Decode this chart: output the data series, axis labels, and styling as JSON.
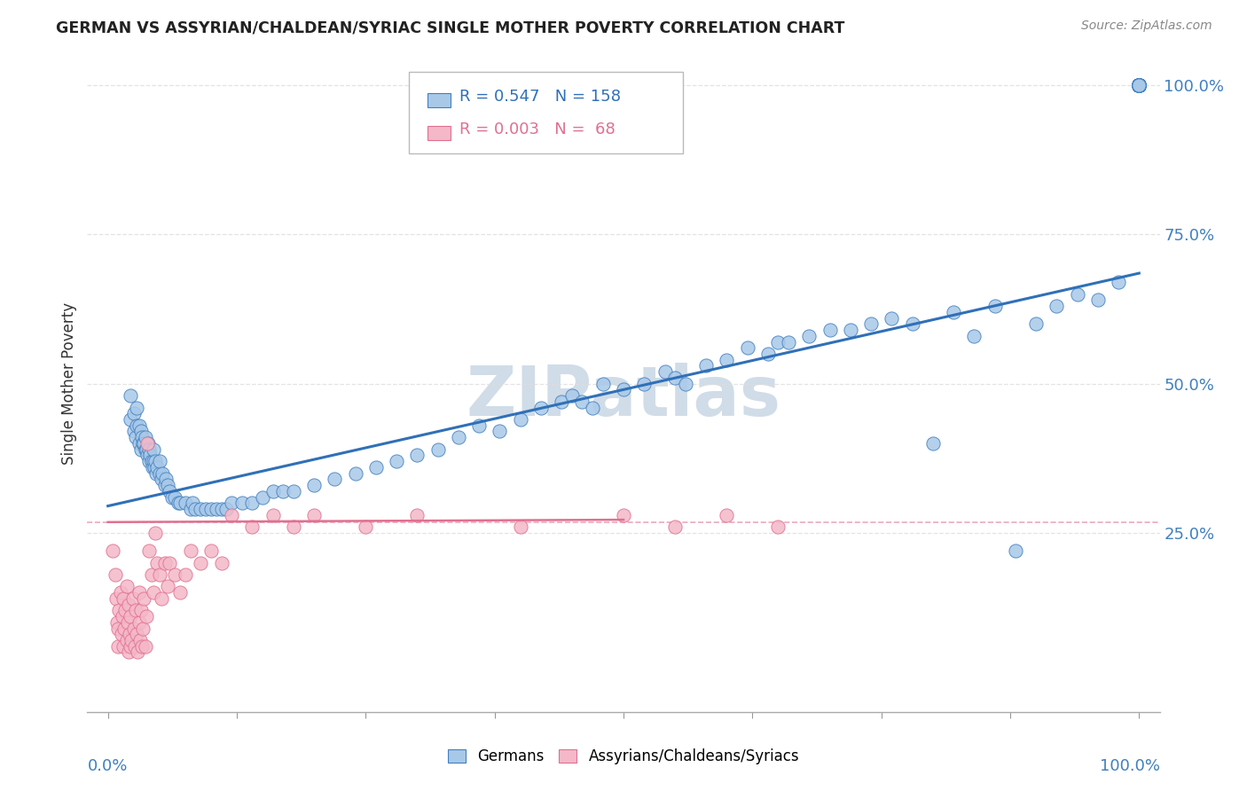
{
  "title": "GERMAN VS ASSYRIAN/CHALDEAN/SYRIAC SINGLE MOTHER POVERTY CORRELATION CHART",
  "source": "Source: ZipAtlas.com",
  "ylabel": "Single Mother Poverty",
  "legend_label1": "Germans",
  "legend_label2": "Assyrians/Chaldeans/Syriacs",
  "r1": "0.547",
  "n1": "158",
  "r2": "0.003",
  "n2": " 68",
  "color_blue": "#a8c8e8",
  "color_pink": "#f4b8c8",
  "color_blue_dark": "#4080c0",
  "color_pink_dark": "#e07090",
  "color_blue_line": "#3070b8",
  "color_pink_line": "#e06080",
  "watermark_color": "#d0dce8",
  "xlim": [
    -0.02,
    1.02
  ],
  "ylim": [
    -0.05,
    1.05
  ],
  "ytick_positions": [
    0.25,
    0.5,
    0.75,
    1.0
  ],
  "ytick_labels": [
    "25.0%",
    "50.0%",
    "75.0%",
    "100.0%"
  ],
  "xtick_positions": [
    0.0,
    0.125,
    0.25,
    0.375,
    0.5,
    0.625,
    0.75,
    0.875,
    1.0
  ],
  "grid_color": "#dddddd",
  "blue_line_x": [
    0.0,
    1.0
  ],
  "blue_line_y": [
    0.295,
    0.685
  ],
  "pink_line_x": [
    0.0,
    0.5
  ],
  "pink_line_y": [
    0.268,
    0.272
  ],
  "hline_y": 0.268,
  "blue_x": [
    0.022,
    0.022,
    0.025,
    0.025,
    0.027,
    0.028,
    0.028,
    0.03,
    0.03,
    0.032,
    0.032,
    0.033,
    0.034,
    0.035,
    0.036,
    0.036,
    0.037,
    0.038,
    0.039,
    0.04,
    0.04,
    0.041,
    0.042,
    0.043,
    0.044,
    0.044,
    0.045,
    0.046,
    0.047,
    0.048,
    0.05,
    0.05,
    0.052,
    0.053,
    0.055,
    0.056,
    0.058,
    0.06,
    0.062,
    0.065,
    0.068,
    0.07,
    0.075,
    0.08,
    0.082,
    0.085,
    0.09,
    0.095,
    0.1,
    0.105,
    0.11,
    0.115,
    0.12,
    0.13,
    0.14,
    0.15,
    0.16,
    0.17,
    0.18,
    0.2,
    0.22,
    0.24,
    0.26,
    0.28,
    0.3,
    0.32,
    0.34,
    0.36,
    0.38,
    0.4,
    0.42,
    0.44,
    0.45,
    0.46,
    0.47,
    0.48,
    0.5,
    0.52,
    0.54,
    0.55,
    0.56,
    0.58,
    0.6,
    0.62,
    0.64,
    0.65,
    0.66,
    0.68,
    0.7,
    0.72,
    0.74,
    0.76,
    0.78,
    0.8,
    0.82,
    0.84,
    0.86,
    0.88,
    0.9,
    0.92,
    0.94,
    0.96,
    0.98,
    1.0,
    1.0,
    1.0,
    1.0,
    1.0,
    1.0,
    1.0,
    1.0,
    1.0,
    1.0,
    1.0,
    1.0,
    1.0,
    1.0,
    1.0,
    1.0,
    1.0,
    1.0,
    1.0,
    1.0,
    1.0,
    1.0,
    1.0,
    1.0,
    1.0,
    1.0,
    1.0,
    1.0,
    1.0,
    1.0,
    1.0,
    1.0,
    1.0,
    1.0,
    1.0,
    1.0,
    1.0,
    1.0,
    1.0,
    1.0,
    1.0,
    1.0,
    1.0,
    1.0,
    1.0,
    1.0,
    1.0,
    1.0,
    1.0,
    1.0,
    1.0,
    1.0,
    1.0,
    1.0,
    1.0
  ],
  "blue_y": [
    0.44,
    0.48,
    0.42,
    0.45,
    0.41,
    0.43,
    0.46,
    0.4,
    0.43,
    0.39,
    0.42,
    0.41,
    0.4,
    0.4,
    0.39,
    0.41,
    0.39,
    0.38,
    0.4,
    0.37,
    0.39,
    0.38,
    0.37,
    0.36,
    0.37,
    0.39,
    0.36,
    0.37,
    0.35,
    0.36,
    0.35,
    0.37,
    0.34,
    0.35,
    0.33,
    0.34,
    0.33,
    0.32,
    0.31,
    0.31,
    0.3,
    0.3,
    0.3,
    0.29,
    0.3,
    0.29,
    0.29,
    0.29,
    0.29,
    0.29,
    0.29,
    0.29,
    0.3,
    0.3,
    0.3,
    0.31,
    0.32,
    0.32,
    0.32,
    0.33,
    0.34,
    0.35,
    0.36,
    0.37,
    0.38,
    0.39,
    0.41,
    0.43,
    0.42,
    0.44,
    0.46,
    0.47,
    0.48,
    0.47,
    0.46,
    0.5,
    0.49,
    0.5,
    0.52,
    0.51,
    0.5,
    0.53,
    0.54,
    0.56,
    0.55,
    0.57,
    0.57,
    0.58,
    0.59,
    0.59,
    0.6,
    0.61,
    0.6,
    0.4,
    0.62,
    0.58,
    0.63,
    0.22,
    0.6,
    0.63,
    0.65,
    0.64,
    0.67,
    1.0,
    1.0,
    1.0,
    1.0,
    1.0,
    1.0,
    1.0,
    1.0,
    1.0,
    1.0,
    1.0,
    1.0,
    1.0,
    1.0,
    1.0,
    1.0,
    1.0,
    1.0,
    1.0,
    1.0,
    1.0,
    1.0,
    1.0,
    1.0,
    1.0,
    1.0,
    1.0,
    1.0,
    1.0,
    1.0,
    1.0,
    1.0,
    1.0,
    1.0,
    1.0,
    1.0,
    1.0,
    1.0,
    1.0,
    1.0,
    1.0,
    1.0,
    1.0,
    1.0,
    1.0,
    1.0,
    1.0,
    1.0,
    1.0,
    1.0,
    1.0,
    1.0,
    1.0,
    1.0,
    1.0
  ],
  "pink_x": [
    0.005,
    0.007,
    0.008,
    0.009,
    0.01,
    0.01,
    0.011,
    0.012,
    0.013,
    0.014,
    0.015,
    0.015,
    0.016,
    0.017,
    0.018,
    0.018,
    0.019,
    0.02,
    0.02,
    0.021,
    0.022,
    0.022,
    0.023,
    0.024,
    0.025,
    0.026,
    0.027,
    0.028,
    0.029,
    0.03,
    0.03,
    0.031,
    0.032,
    0.033,
    0.034,
    0.035,
    0.036,
    0.037,
    0.038,
    0.04,
    0.042,
    0.044,
    0.046,
    0.048,
    0.05,
    0.052,
    0.055,
    0.058,
    0.06,
    0.065,
    0.07,
    0.075,
    0.08,
    0.09,
    0.1,
    0.11,
    0.12,
    0.14,
    0.16,
    0.18,
    0.2,
    0.25,
    0.3,
    0.4,
    0.5,
    0.55,
    0.6,
    0.65
  ],
  "pink_y": [
    0.22,
    0.18,
    0.14,
    0.1,
    0.06,
    0.09,
    0.12,
    0.15,
    0.08,
    0.11,
    0.06,
    0.14,
    0.09,
    0.12,
    0.07,
    0.16,
    0.1,
    0.05,
    0.13,
    0.08,
    0.06,
    0.11,
    0.07,
    0.14,
    0.09,
    0.06,
    0.12,
    0.08,
    0.05,
    0.1,
    0.15,
    0.07,
    0.12,
    0.06,
    0.09,
    0.14,
    0.06,
    0.11,
    0.4,
    0.22,
    0.18,
    0.15,
    0.25,
    0.2,
    0.18,
    0.14,
    0.2,
    0.16,
    0.2,
    0.18,
    0.15,
    0.18,
    0.22,
    0.2,
    0.22,
    0.2,
    0.28,
    0.26,
    0.28,
    0.26,
    0.28,
    0.26,
    0.28,
    0.26,
    0.28,
    0.26,
    0.28,
    0.26
  ]
}
